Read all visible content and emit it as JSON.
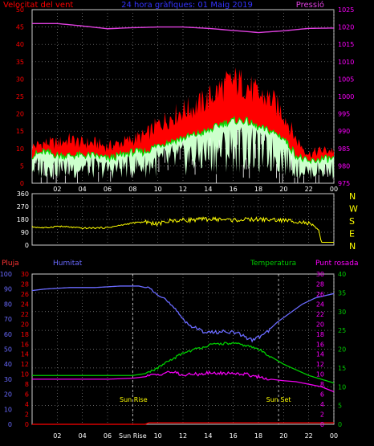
{
  "header": {
    "title": "24 hora gràfiques: 01 Maig 2019",
    "left_label": "Velocitat del vent",
    "right_label": "Pressió"
  },
  "colors": {
    "wind_gust": "#ff0000",
    "wind_avg": "#00dd00",
    "wind_fill": "#ccffcc",
    "pressure": "#e040e0",
    "direction": "#ffff00",
    "humidity": "#6a6aff",
    "temperature": "#00cc00",
    "dewpoint": "#ee00ee",
    "rain": "#ff0000",
    "axis_red": "#ff0000",
    "axis_blue": "#6a6aff",
    "axis_green": "#00cc00",
    "axis_magenta": "#ff00ff"
  },
  "x_ticks": [
    "02",
    "04",
    "06",
    "08",
    "10",
    "12",
    "14",
    "16",
    "18",
    "20",
    "22",
    "00"
  ],
  "bottom_x_ticks": [
    "02",
    "04",
    "06",
    "Sun Rise",
    "10",
    "12",
    "14",
    "16",
    "18",
    "20",
    "22",
    "00"
  ],
  "chart_data": [
    {
      "type": "area",
      "title": "24 hora gràfiques: 01 Maig 2019",
      "x_ticks": [
        "02",
        "04",
        "06",
        "08",
        "10",
        "12",
        "14",
        "16",
        "18",
        "20",
        "22",
        "00"
      ],
      "y_left": {
        "label": "Velocitat del vent",
        "ticks": [
          0,
          5,
          10,
          15,
          20,
          25,
          30,
          35,
          40,
          45,
          50
        ],
        "range": [
          0,
          50
        ]
      },
      "y_right": {
        "label": "Pressió",
        "ticks": [
          975,
          980,
          985,
          990,
          995,
          1000,
          1005,
          1010,
          1015,
          1020,
          1025
        ],
        "range": [
          975,
          1025
        ]
      },
      "series": [
        {
          "name": "",
          "color": "wind_gust",
          "hours": [
            0,
            1,
            2,
            3,
            4,
            5,
            6,
            7,
            8,
            9,
            10,
            11,
            12,
            13,
            14,
            15,
            16,
            17,
            18,
            19,
            20,
            21,
            22,
            23,
            24
          ],
          "values": [
            10,
            11,
            11,
            12,
            11,
            11,
            10,
            11,
            12,
            13,
            16,
            18,
            20,
            21,
            23,
            26,
            28,
            27,
            24,
            23,
            19,
            12,
            8,
            9,
            9
          ]
        },
        {
          "name": "",
          "color": "wind_avg",
          "hours": [
            0,
            1,
            2,
            3,
            4,
            5,
            6,
            7,
            8,
            9,
            10,
            11,
            12,
            13,
            14,
            15,
            16,
            17,
            18,
            19,
            20,
            21,
            22,
            23,
            24
          ],
          "values": [
            8,
            9,
            8,
            8,
            8,
            8,
            7,
            8,
            9,
            9,
            11,
            12,
            13,
            14,
            15,
            17,
            18,
            18,
            16,
            15,
            13,
            8,
            6,
            7,
            7
          ]
        },
        {
          "name": "",
          "color": "pressure",
          "hours": [
            0,
            2,
            4,
            6,
            8,
            10,
            12,
            14,
            16,
            18,
            20,
            22,
            24
          ],
          "values": [
            1021,
            1021,
            1020.3,
            1019.5,
            1019.8,
            1020,
            1020,
            1019.6,
            1019,
            1018.4,
            1018.9,
            1019.6,
            1019.7
          ]
        }
      ]
    },
    {
      "type": "line",
      "title": "",
      "x_ticks": [
        "02",
        "04",
        "06",
        "08",
        "10",
        "12",
        "14",
        "16",
        "18",
        "20",
        "22",
        "00"
      ],
      "y_left": {
        "ticks": [
          0,
          90,
          180,
          270,
          360
        ],
        "range": [
          0,
          360
        ]
      },
      "y_right": {
        "ticks": [
          "N",
          "W",
          "S",
          "E",
          "N"
        ]
      },
      "series": [
        {
          "name": "",
          "color": "direction",
          "hours": [
            0,
            1,
            2,
            3,
            4,
            5,
            6,
            7,
            8,
            9,
            10,
            11,
            12,
            13,
            14,
            15,
            16,
            17,
            18,
            19,
            20,
            21,
            22,
            22.8,
            23,
            24
          ],
          "values": [
            128,
            120,
            132,
            126,
            118,
            120,
            122,
            138,
            155,
            162,
            148,
            170,
            175,
            178,
            182,
            180,
            175,
            178,
            180,
            178,
            173,
            168,
            150,
            105,
            20,
            20
          ]
        }
      ]
    },
    {
      "type": "line",
      "title": "",
      "x_ticks": [
        "02",
        "04",
        "06",
        "Sun Rise",
        "10",
        "12",
        "14",
        "16",
        "18",
        "20",
        "22",
        "00"
      ],
      "legend": [
        "Pluja",
        "Humitat",
        "Temperatura",
        "Punt rosada"
      ],
      "y_axes": [
        {
          "label": "Pluja",
          "ticks": [
            0,
            2,
            4,
            6,
            8,
            10,
            12,
            14,
            16,
            18,
            20,
            22,
            24,
            26,
            28,
            30
          ],
          "range": [
            0,
            30
          ]
        },
        {
          "label": "Humitat",
          "ticks": [
            0,
            10,
            20,
            30,
            40,
            50,
            60,
            70,
            80,
            90,
            100
          ],
          "range": [
            0,
            100
          ]
        },
        {
          "label": "Temperatura",
          "ticks": [
            0,
            5,
            10,
            15,
            20,
            25,
            30,
            35,
            40
          ],
          "range": [
            0,
            40
          ]
        },
        {
          "label": "Punt rosada",
          "ticks": [
            0,
            2,
            4,
            6,
            8,
            10,
            12,
            14,
            16,
            18,
            20,
            22,
            24,
            26,
            28,
            30
          ],
          "range": [
            0,
            30
          ]
        }
      ],
      "annotations": [
        "Sun Rise",
        "Sun Set"
      ],
      "series": [
        {
          "name": "Humitat",
          "color": "humidity",
          "hours": [
            0,
            1,
            3,
            5,
            7,
            8.5,
            9.5,
            10.5,
            11.5,
            12.5,
            13.5,
            14.5,
            15.5,
            16.5,
            17.5,
            18.5,
            19.5,
            20.5,
            21.5,
            22.5,
            23.5,
            24
          ],
          "values": [
            89,
            90,
            91,
            91,
            92,
            92,
            90,
            84,
            75,
            66,
            62,
            61,
            62,
            60,
            56,
            60,
            68,
            74,
            80,
            84,
            86,
            87
          ]
        },
        {
          "name": "Temperatura",
          "color": "temperature",
          "hours": [
            0,
            2,
            4,
            6,
            8,
            9,
            10,
            11,
            12,
            13,
            14,
            15,
            16,
            17,
            18,
            19,
            20,
            21,
            22,
            23,
            24
          ],
          "values": [
            13,
            13,
            13,
            13,
            13,
            13.5,
            15,
            17,
            19,
            20,
            21,
            21.5,
            21.5,
            21,
            20,
            18,
            16,
            14.5,
            13,
            12,
            11
          ]
        },
        {
          "name": "Punt rosada",
          "color": "dewpoint",
          "hours": [
            0,
            2,
            4,
            6,
            8,
            9,
            10,
            11,
            12,
            13,
            14,
            15,
            16,
            17,
            18,
            19,
            20,
            21,
            22,
            23,
            24
          ],
          "values": [
            9,
            9,
            9,
            9,
            9.2,
            9.5,
            10,
            10.5,
            9.8,
            10,
            10.2,
            10.2,
            10.2,
            10,
            9.5,
            9,
            8.7,
            8.5,
            8,
            7.5,
            6.5
          ]
        },
        {
          "name": "Pluja",
          "color": "rain",
          "hours": [
            0,
            9,
            9.3,
            24
          ],
          "values": [
            0,
            0,
            0.3,
            0.3
          ]
        }
      ]
    }
  ],
  "panel2_right_labels": [
    "N",
    "W",
    "S",
    "E",
    "N"
  ],
  "panel3": {
    "legend": {
      "rain": "Pluja",
      "humidity": "Humitat",
      "temperature": "Temperatura",
      "dewpoint": "Punt rosada"
    },
    "sun_rise": "Sun Rise",
    "sun_set": "Sun Set",
    "sun_rise_hour": 8,
    "sun_set_hour": 19.6
  }
}
